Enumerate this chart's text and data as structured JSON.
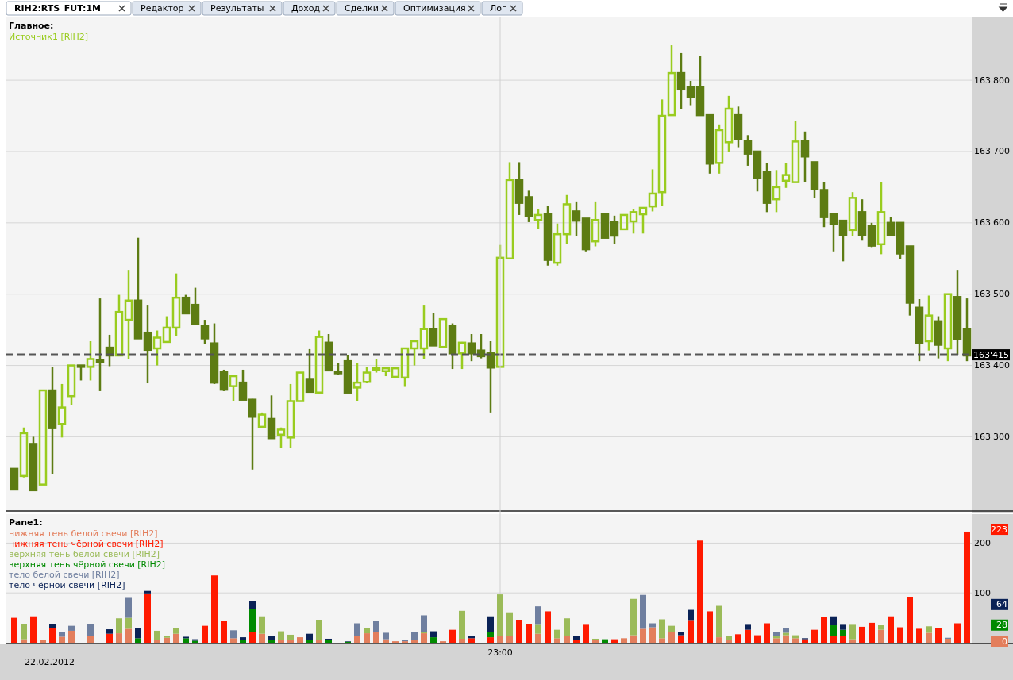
{
  "chart_data": [
    {
      "type": "candlestick",
      "title": "Главное:",
      "annotations": [
        "RIH2:RTS_FUT:1M",
        "Редактор",
        "Результаты",
        "Доход",
        "Сделки",
        "Оптимизация",
        "Лог"
      ],
      "categories": [
        null,
        null,
        null,
        null,
        null,
        null,
        null,
        null,
        null,
        null,
        null,
        null,
        null,
        null,
        null,
        null,
        null,
        null,
        null,
        null,
        null,
        null,
        null,
        null,
        null,
        null,
        null,
        null,
        null,
        null,
        null,
        null,
        null,
        null,
        null,
        null,
        null,
        null,
        null,
        null,
        null,
        null,
        null,
        null,
        null,
        null,
        null,
        null,
        null,
        null,
        null,
        null,
        null,
        null,
        null,
        null,
        null,
        null,
        null,
        null,
        null,
        null,
        null,
        null,
        null,
        null,
        null,
        null,
        null,
        null,
        null,
        null,
        null,
        null,
        null,
        null,
        null,
        null,
        null,
        null,
        null,
        null,
        null,
        null,
        null,
        null,
        null,
        null,
        null,
        null,
        null,
        null,
        null,
        null,
        null,
        null,
        null,
        null,
        null,
        null,
        null
      ],
      "series": [
        {
          "name": "Источник1 [RIH2]",
          "color": "#99cc1f",
          "colors": [
            "#5d7c13",
            "#99cc1f",
            "#5d7c13",
            "#99cc1f",
            "#5d7c13",
            "#99cc1f",
            "#99cc1f",
            "#5d7c13",
            "#99cc1f",
            "#5d7c13",
            "#5d7c13",
            "#99cc1f",
            "#99cc1f",
            "#5d7c13",
            "#5d7c13",
            "#99cc1f",
            "#99cc1f",
            "#99cc1f",
            "#5d7c13",
            "#5d7c13",
            "#5d7c13",
            "#5d7c13",
            "#5d7c13",
            "#99cc1f",
            "#5d7c13",
            "#5d7c13",
            "#99cc1f",
            "#5d7c13",
            "#99cc1f",
            "#99cc1f",
            "#99cc1f",
            "#5d7c13",
            "#99cc1f",
            "#5d7c13",
            "#5d7c13",
            "#5d7c13",
            "#99cc1f",
            "#99cc1f",
            "#99cc1f",
            "#99cc1f",
            "#99cc1f",
            "#99cc1f",
            "#99cc1f",
            "#99cc1f",
            "#5d7c13",
            "#99cc1f",
            "#5d7c13",
            "#99cc1f",
            "#5d7c13",
            "#5d7c13",
            "#5d7c13",
            "#99cc1f",
            "#99cc1f",
            "#5d7c13",
            "#5d7c13",
            "#99cc1f",
            "#5d7c13",
            "#99cc1f",
            "#99cc1f",
            "#5d7c13",
            "#5d7c13",
            "#99cc1f",
            "#5d7c13",
            "#5d7c13",
            "#99cc1f",
            "#99cc1f",
            "#99cc1f",
            "#99cc1f",
            "#99cc1f",
            "#99cc1f",
            "#5d7c13",
            "#5d7c13",
            "#5d7c13",
            "#5d7c13",
            "#99cc1f",
            "#99cc1f",
            "#5d7c13",
            "#5d7c13",
            "#5d7c13",
            "#5d7c13",
            "#99cc1f",
            "#99cc1f",
            "#99cc1f",
            "#5d7c13",
            "#5d7c13",
            "#5d7c13",
            "#5d7c13",
            "#5d7c13",
            "#99cc1f",
            "#5d7c13",
            "#5d7c13",
            "#99cc1f",
            "#5d7c13",
            "#5d7c13",
            "#5d7c13",
            "#5d7c13",
            "#99cc1f",
            "#5d7c13",
            "#99cc1f",
            "#5d7c13",
            "#5d7c13"
          ],
          "ohlc": [
            [
              163255,
              163255,
              163225,
              163226
            ],
            [
              163245,
              163313,
              163243,
              163305
            ],
            [
              163290,
              163300,
              163225,
              163225
            ],
            [
              163233,
              163365,
              163233,
              163365
            ],
            [
              163365,
              163398,
              163248,
              163312
            ],
            [
              163318,
              163374,
              163299,
              163341
            ],
            [
              163357,
              163400,
              163344,
              163400
            ],
            [
              163400,
              163400,
              163379,
              163398
            ],
            [
              163398,
              163434,
              163379,
              163409
            ],
            [
              163408,
              163494,
              163364,
              163405
            ],
            [
              163425,
              163443,
              163399,
              163414
            ],
            [
              163414,
              163499,
              163414,
              163475
            ],
            [
              163464,
              163534,
              163409,
              163491
            ],
            [
              163491,
              163579,
              163438,
              163438
            ],
            [
              163446,
              163484,
              163375,
              163422
            ],
            [
              163424,
              163449,
              163400,
              163439
            ],
            [
              163433,
              163469,
              163433,
              163453
            ],
            [
              163453,
              163529,
              163441,
              163495
            ],
            [
              163495,
              163499,
              163473,
              163473
            ],
            [
              163485,
              163509,
              163458,
              163458
            ],
            [
              163455,
              163464,
              163430,
              163438
            ],
            [
              163431,
              163459,
              163374,
              163376
            ],
            [
              163391,
              163394,
              163364,
              163366
            ],
            [
              163371,
              163385,
              163350,
              163385
            ],
            [
              163376,
              163394,
              163352,
              163352
            ],
            [
              163352,
              163353,
              163254,
              163328
            ],
            [
              163314,
              163334,
              163314,
              163331
            ],
            [
              163325,
              163358,
              163298,
              163298
            ],
            [
              163303,
              163313,
              163284,
              163310
            ],
            [
              163299,
              163374,
              163284,
              163350
            ],
            [
              163350,
              163390,
              163350,
              163390
            ],
            [
              163380,
              163423,
              163363,
              163363
            ],
            [
              163362,
              163449,
              163360,
              163440
            ],
            [
              163432,
              163444,
              163393,
              163393
            ],
            [
              163391,
              163404,
              163387,
              163389
            ],
            [
              163406,
              163415,
              163362,
              163362
            ],
            [
              163369,
              163404,
              163350,
              163376
            ],
            [
              163377,
              163398,
              163375,
              163390
            ],
            [
              163394,
              163409,
              163390,
              163396
            ],
            [
              163392,
              163396,
              163385,
              163396
            ],
            [
              163384,
              163396,
              163384,
              163396
            ],
            [
              163383,
              163424,
              163370,
              163424
            ],
            [
              163424,
              163434,
              163400,
              163434
            ],
            [
              163424,
              163484,
              163409,
              163451
            ],
            [
              163451,
              163474,
              163428,
              163428
            ],
            [
              163426,
              163465,
              163424,
              163465
            ],
            [
              163455,
              163459,
              163395,
              163417
            ],
            [
              163417,
              163433,
              163395,
              163432
            ],
            [
              163431,
              163444,
              163406,
              163417
            ],
            [
              163421,
              163444,
              163410,
              163413
            ],
            [
              163417,
              163434,
              163334,
              163397
            ],
            [
              163398,
              163569,
              163398,
              163551
            ],
            [
              163550,
              163685,
              163550,
              163660
            ],
            [
              163660,
              163685,
              163611,
              163628
            ],
            [
              163636,
              163645,
              163601,
              163610
            ],
            [
              163604,
              163619,
              163591,
              163611
            ],
            [
              163612,
              163624,
              163540,
              163548
            ],
            [
              163544,
              163599,
              163540,
              163584
            ],
            [
              163584,
              163639,
              163570,
              163626
            ],
            [
              163616,
              163630,
              163581,
              163603
            ],
            [
              163606,
              163606,
              163560,
              163563
            ],
            [
              163574,
              163630,
              163567,
              163604
            ],
            [
              163612,
              163612,
              163579,
              163579
            ],
            [
              163601,
              163610,
              163570,
              163582
            ],
            [
              163591,
              163611,
              163591,
              163611
            ],
            [
              163602,
              163619,
              163585,
              163615
            ],
            [
              163612,
              163621,
              163585,
              163621
            ],
            [
              163623,
              163675,
              163616,
              163641
            ],
            [
              163643,
              163773,
              163624,
              163750
            ],
            [
              163751,
              163849,
              163750,
              163810
            ],
            [
              163810,
              163838,
              163760,
              163787
            ],
            [
              163790,
              163799,
              163765,
              163777
            ],
            [
              163790,
              163834,
              163750,
              163751
            ],
            [
              163751,
              163751,
              163669,
              163683
            ],
            [
              163684,
              163738,
              163669,
              163730
            ],
            [
              163713,
              163778,
              163700,
              163760
            ],
            [
              163751,
              163763,
              163706,
              163717
            ],
            [
              163715,
              163723,
              163680,
              163697
            ],
            [
              163700,
              163700,
              163644,
              163663
            ],
            [
              163671,
              163684,
              163615,
              163628
            ],
            [
              163633,
              163674,
              163615,
              163650
            ],
            [
              163659,
              163684,
              163649,
              163667
            ],
            [
              163657,
              163743,
              163657,
              163714
            ],
            [
              163715,
              163728,
              163657,
              163693
            ],
            [
              163685,
              163685,
              163635,
              163647
            ],
            [
              163646,
              163657,
              163594,
              163608
            ],
            [
              163612,
              163612,
              163560,
              163598
            ],
            [
              163603,
              163603,
              163546,
              163583
            ],
            [
              163590,
              163643,
              163581,
              163635
            ],
            [
              163615,
              163633,
              163575,
              163583
            ],
            [
              163596,
              163600,
              163566,
              163568
            ],
            [
              163570,
              163657,
              163556,
              163615
            ],
            [
              163600,
              163608,
              163581,
              163583
            ],
            [
              163600,
              163600,
              163549,
              163557
            ],
            [
              163567,
              163567,
              163470,
              163488
            ],
            [
              163481,
              163493,
              163406,
              163432
            ],
            [
              163434,
              163498,
              163421,
              163470
            ],
            [
              163462,
              163469,
              163410,
              163429
            ],
            [
              163424,
              163500,
              163406,
              163500
            ],
            [
              163496,
              163534,
              163415,
              163437
            ],
            [
              163451,
              163494,
              163406,
              163414
            ]
          ]
        }
      ],
      "ylim": [
        163197,
        163888
      ],
      "yticks": [
        {
          "value": 163300,
          "label": "163'300"
        },
        {
          "value": 163400,
          "label": "163'400"
        },
        {
          "value": 163500,
          "label": "163'500"
        },
        {
          "value": 163600,
          "label": "163'600"
        },
        {
          "value": 163700,
          "label": "163'700"
        },
        {
          "value": 163800,
          "label": "163'800"
        }
      ],
      "ref_lines": [
        {
          "axis": "y",
          "value": 163415,
          "label": "163'415",
          "color": "#555555",
          "line_style": "dashed"
        }
      ],
      "grid": true,
      "legend": "top left",
      "tick_labels": "y"
    },
    {
      "type": "bar",
      "title": "Pane1:",
      "stacked": true,
      "annotations": [
        "22.02.2012",
        "223",
        "64",
        "28",
        "0"
      ],
      "categories": [
        null,
        null,
        null,
        null,
        null,
        null,
        null,
        null,
        null,
        null,
        null,
        null,
        null,
        null,
        null,
        null,
        null,
        null,
        null,
        null,
        null,
        null,
        null,
        null,
        null,
        null,
        null,
        null,
        null,
        null,
        null,
        null,
        null,
        null,
        null,
        null,
        null,
        null,
        null,
        null,
        null,
        null,
        null,
        null,
        null,
        null,
        null,
        null,
        null,
        null,
        null,
        "23:00",
        null,
        null,
        null,
        null,
        null,
        null,
        null,
        null,
        null,
        null,
        null,
        null,
        null,
        null,
        null,
        null,
        null,
        null,
        null,
        null,
        null,
        null,
        null,
        null,
        null,
        null,
        null,
        null,
        null,
        null,
        null,
        null,
        null,
        null,
        null,
        null,
        null,
        null,
        null,
        null,
        null,
        null,
        null,
        null,
        null,
        null,
        null,
        null,
        null
      ],
      "series": [
        {
          "name": "нижняя тень белой свечи [RIH2]",
          "color": "#e37e5c",
          "values": [
            0,
            7,
            0,
            5,
            0,
            12,
            24,
            0,
            13,
            0,
            0,
            19,
            28,
            0,
            0,
            6,
            10,
            18,
            0,
            0,
            0,
            0,
            0,
            9,
            0,
            0,
            18,
            0,
            5,
            5,
            11,
            0,
            5,
            0,
            0,
            0,
            14,
            19,
            21,
            7,
            3,
            3,
            6,
            19,
            0,
            3,
            0,
            8,
            0,
            0,
            0,
            13,
            13,
            0,
            0,
            18,
            0,
            9,
            13,
            0,
            0,
            5,
            0,
            0,
            9,
            15,
            28,
            31,
            9,
            22,
            0,
            0,
            0,
            0,
            11,
            5,
            0,
            0,
            0,
            0,
            9,
            15,
            9,
            0,
            0,
            0,
            0,
            0,
            7,
            0,
            0,
            26,
            0,
            0,
            0,
            0,
            20,
            0,
            8,
            0,
            0
          ]
        },
        {
          "name": "нижняя тень чёрной свечи [RIH2]",
          "color": "#ff1a00",
          "values": [
            50,
            0,
            53,
            0,
            29,
            0,
            0,
            0,
            0,
            0,
            18,
            0,
            0,
            0,
            99,
            0,
            0,
            0,
            0,
            0,
            34,
            135,
            43,
            0,
            0,
            22,
            0,
            0,
            0,
            0,
            0,
            0,
            0,
            0,
            0,
            0,
            0,
            0,
            0,
            0,
            0,
            0,
            0,
            0,
            0,
            0,
            26,
            0,
            9,
            0,
            11,
            0,
            0,
            45,
            38,
            0,
            63,
            0,
            0,
            5,
            36,
            0,
            0,
            7,
            0,
            0,
            0,
            0,
            0,
            0,
            15,
            44,
            205,
            63,
            0,
            0,
            17,
            26,
            15,
            39,
            0,
            0,
            0,
            7,
            26,
            51,
            13,
            13,
            0,
            32,
            40,
            0,
            53,
            31,
            91,
            28,
            0,
            29,
            0,
            39,
            223
          ]
        },
        {
          "name": "верхняя тень белой свечи [RIH2]",
          "color": "#9bbb59",
          "values": [
            0,
            31,
            0,
            0,
            0,
            0,
            0,
            0,
            0,
            0,
            0,
            30,
            22,
            0,
            0,
            18,
            3,
            11,
            0,
            0,
            0,
            0,
            0,
            0,
            0,
            0,
            35,
            0,
            18,
            11,
            0,
            0,
            41,
            0,
            0,
            0,
            0,
            10,
            0,
            0,
            0,
            0,
            0,
            3,
            0,
            0,
            0,
            56,
            0,
            0,
            0,
            84,
            48,
            0,
            0,
            18,
            0,
            17,
            36,
            0,
            0,
            3,
            0,
            0,
            0,
            73,
            0,
            0,
            38,
            12,
            0,
            0,
            0,
            0,
            63,
            9,
            0,
            0,
            0,
            0,
            5,
            5,
            6,
            0,
            0,
            0,
            0,
            0,
            29,
            0,
            0,
            9,
            0,
            0,
            0,
            0,
            13,
            0,
            0,
            0,
            0
          ]
        },
        {
          "name": "верхняя тень чёрной свечи [RIH2]",
          "color": "#008a00",
          "values": [
            0,
            0,
            0,
            0,
            0,
            0,
            0,
            0,
            0,
            0,
            0,
            0,
            0,
            9,
            0,
            0,
            0,
            0,
            9,
            4,
            0,
            0,
            0,
            0,
            6,
            46,
            0,
            6,
            0,
            0,
            0,
            6,
            0,
            6,
            0,
            2,
            0,
            0,
            0,
            0,
            0,
            0,
            0,
            0,
            11,
            0,
            0,
            0,
            0,
            0,
            11,
            0,
            0,
            0,
            0,
            0,
            0,
            0,
            0,
            0,
            0,
            0,
            7,
            0,
            0,
            0,
            0,
            0,
            0,
            0,
            0,
            0,
            0,
            0,
            0,
            0,
            0,
            0,
            0,
            0,
            0,
            0,
            0,
            0,
            0,
            0,
            22,
            13,
            0,
            0,
            0,
            0,
            0,
            0,
            0,
            0,
            0,
            0,
            0,
            0,
            0
          ]
        },
        {
          "name": "тело белой свечи [RIH2]",
          "color": "#6f7f9f",
          "values": [
            0,
            0,
            0,
            0,
            0,
            10,
            10,
            0,
            25,
            0,
            0,
            0,
            40,
            0,
            0,
            0,
            0,
            0,
            0,
            0,
            0,
            0,
            0,
            16,
            0,
            0,
            0,
            0,
            0,
            0,
            0,
            0,
            0,
            0,
            0,
            0,
            25,
            0,
            22,
            13,
            0,
            2,
            15,
            33,
            0,
            0,
            0,
            0,
            0,
            0,
            0,
            0,
            0,
            0,
            0,
            37,
            0,
            0,
            0,
            0,
            0,
            0,
            0,
            0,
            0,
            0,
            68,
            8,
            0,
            0,
            0,
            0,
            0,
            0,
            0,
            0,
            0,
            0,
            0,
            0,
            8,
            9,
            0,
            0,
            0,
            0,
            0,
            0,
            0,
            0,
            0,
            0,
            0,
            0,
            0,
            0,
            0,
            0,
            2,
            0,
            0
          ]
        },
        {
          "name": "тело чёрной свечи [RIH2]",
          "color": "#0a2256",
          "values": [
            0,
            0,
            0,
            0,
            9,
            0,
            0,
            0,
            0,
            0,
            9,
            0,
            0,
            20,
            5,
            0,
            0,
            0,
            3,
            3,
            0,
            0,
            0,
            0,
            5,
            16,
            0,
            8,
            0,
            0,
            0,
            12,
            0,
            2,
            0,
            1,
            0,
            0,
            0,
            0,
            0,
            0,
            0,
            0,
            12,
            0,
            0,
            0,
            5,
            0,
            31,
            0,
            0,
            0,
            0,
            0,
            0,
            0,
            0,
            8,
            0,
            0,
            0,
            0,
            0,
            0,
            0,
            0,
            0,
            0,
            7,
            22,
            0,
            0,
            0,
            0,
            0,
            10,
            0,
            0,
            0,
            0,
            0,
            2,
            0,
            0,
            18,
            10,
            0,
            0,
            0,
            0,
            0,
            0,
            0,
            0,
            0,
            0,
            0,
            0,
            0
          ]
        }
      ],
      "ylim": [
        0,
        258
      ],
      "yticks": [
        100,
        200
      ],
      "grid": true,
      "legend": "top left"
    }
  ]
}
